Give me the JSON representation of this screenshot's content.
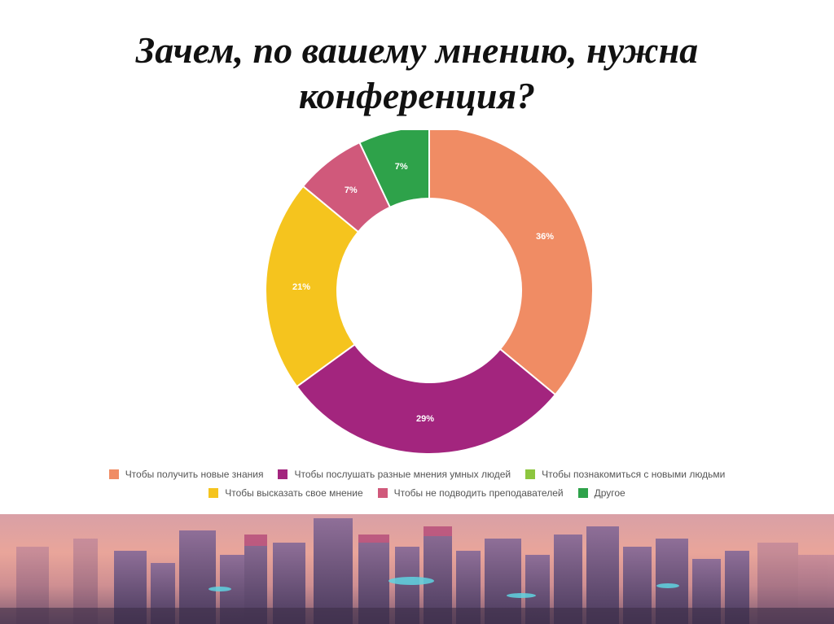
{
  "title": {
    "line1": "Зачем, по вашему мнению, нужна",
    "line2": "конференция?"
  },
  "chart_data": {
    "type": "pie",
    "variant": "donut",
    "title": "Зачем, по вашему мнению, нужна конференция?",
    "legend_position": "bottom",
    "slices": [
      {
        "label": "Чтобы получить новые знания",
        "value": 36,
        "display": "36%",
        "color": "#F08C64"
      },
      {
        "label": "Чтобы послушать разные мнения умных людей",
        "value": 29,
        "display": "29%",
        "color": "#A3257E"
      },
      {
        "label": "Чтобы высказать свое мнение",
        "value": 21,
        "display": "21%",
        "color": "#F5C41E"
      },
      {
        "label": "Чтобы не подводить преподавателей",
        "value": 7,
        "display": "7%",
        "color": "#D0597B"
      },
      {
        "label": "Другое",
        "value": 7,
        "display": "7%",
        "color": "#2EA24A"
      }
    ],
    "legend": [
      {
        "label": "Чтобы получить новые знания",
        "color": "#F08C64"
      },
      {
        "label": "Чтобы послушать разные мнения умных людей",
        "color": "#A3257E"
      },
      {
        "label": "Чтобы познакомиться с новыми людьми",
        "color": "#8DC63F"
      },
      {
        "label": "Чтобы высказать свое мнение",
        "color": "#F5C41E"
      },
      {
        "label": "Чтобы не подводить преподавателей",
        "color": "#D0597B"
      },
      {
        "label": "Другое",
        "color": "#2EA24A"
      }
    ]
  },
  "banner": {
    "icon": "futuristic-city-skyline-illustration"
  }
}
